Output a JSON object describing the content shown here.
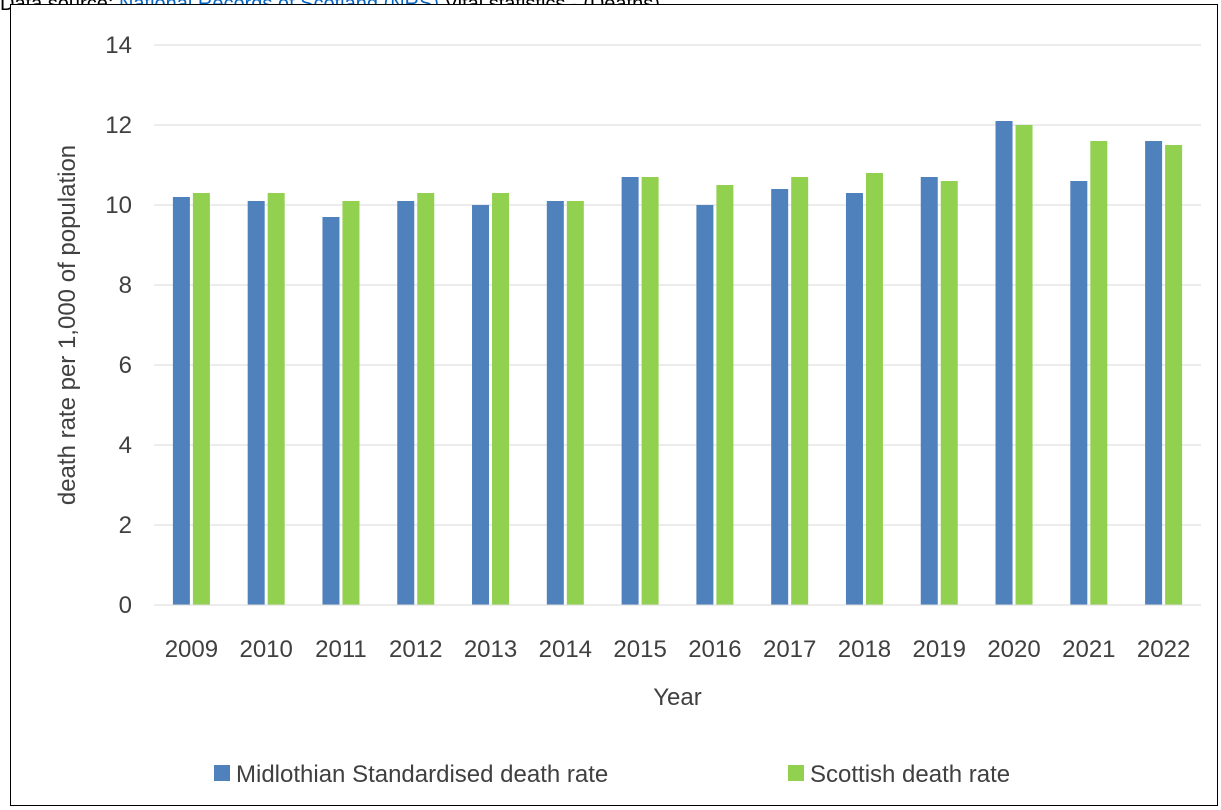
{
  "source": {
    "prefix": "Data source: ",
    "link_text": "National Records of Scotland (NRS)",
    "suffix": " Vital statistics - (Deaths)"
  },
  "chart_data": {
    "type": "bar",
    "categories": [
      "2009",
      "2010",
      "2011",
      "2012",
      "2013",
      "2014",
      "2015",
      "2016",
      "2017",
      "2018",
      "2019",
      "2020",
      "2021",
      "2022"
    ],
    "series": [
      {
        "name": "Midlothian Standardised death rate",
        "color": "#4f81bd",
        "values": [
          10.2,
          10.1,
          9.7,
          10.1,
          10.0,
          10.1,
          10.7,
          10.0,
          10.4,
          10.3,
          10.7,
          12.1,
          10.6,
          11.6
        ]
      },
      {
        "name": "Scottish death rate",
        "color": "#92d050",
        "values": [
          10.3,
          10.3,
          10.1,
          10.3,
          10.3,
          10.1,
          10.7,
          10.5,
          10.7,
          10.8,
          10.6,
          12.0,
          11.6,
          11.5
        ]
      }
    ],
    "xlabel": "Year",
    "ylabel": "death rate per 1,000 of population",
    "ylim": [
      0,
      14
    ],
    "yticks": [
      "0",
      "2",
      "4",
      "6",
      "8",
      "10",
      "12",
      "14"
    ],
    "grid": true,
    "legend_position": "bottom"
  }
}
